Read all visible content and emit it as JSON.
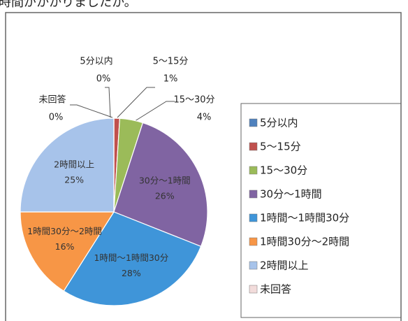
{
  "heading": "い時間がかかりましたか。",
  "chart_data": {
    "type": "pie",
    "categories": [
      "5分以内",
      "5～15分",
      "15～30分",
      "30分～1時間",
      "1時間～1時間30分",
      "1時間30分～2時間",
      "2時間以上",
      "未回答"
    ],
    "values": [
      0,
      1,
      4,
      26,
      28,
      16,
      25,
      0
    ],
    "value_labels": [
      "0%",
      "1%",
      "4%",
      "26%",
      "28%",
      "16%",
      "25%",
      "0%"
    ],
    "colors": [
      "#4f81bd",
      "#c0504d",
      "#9bbb59",
      "#8064a2",
      "#3f95d9",
      "#f79646",
      "#a7c3ea",
      "#f2dcdb"
    ]
  }
}
